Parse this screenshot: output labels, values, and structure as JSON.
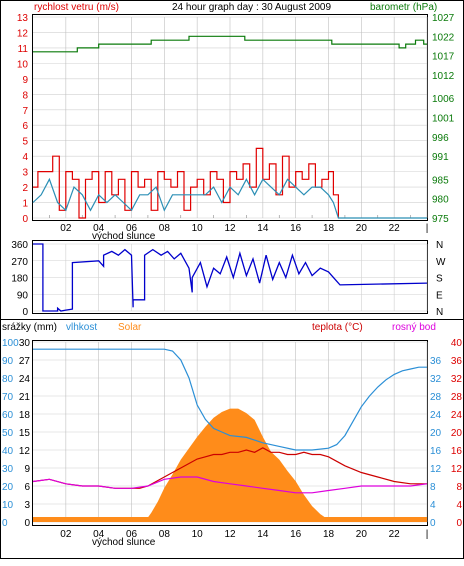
{
  "chart_data": [
    {
      "type": "line",
      "title": "24 hour graph day : 30 August 2009",
      "left_axis_label": "rychlost vetru (m/s)",
      "right_axis_label": "barometr (hPa)",
      "x_ticks": [
        "02",
        "04",
        "06",
        "08",
        "10",
        "12",
        "14",
        "16",
        "18",
        "20",
        "22",
        "|"
      ],
      "x_annotation": "východ slunce",
      "ylim_left": [
        0,
        13
      ],
      "ylim_right": [
        975,
        1027
      ],
      "y_ticks_left": [
        "0",
        "1",
        "2",
        "3",
        "4",
        "5",
        "6",
        "7",
        "8",
        "9",
        "10",
        "11",
        "12",
        "13"
      ],
      "y_ticks_right": [
        "975",
        "980",
        "985",
        "991",
        "996",
        "1001",
        "1006",
        "1012",
        "1017",
        "1022",
        "1027"
      ],
      "colors": {
        "gust": "#e00000",
        "wind": "#2b8fb5",
        "barometer": "#0a7a0a",
        "axis_left": "#dd0000",
        "axis_right": "#0a7a0a",
        "title": "#000000"
      },
      "series": [
        {
          "key": "gust",
          "hours": [
            0,
            0.3,
            0.8,
            1.2,
            1.6,
            2.0,
            2.4,
            2.8,
            3.2,
            3.6,
            4.0,
            4.4,
            4.8,
            5.2,
            5.6,
            6.0,
            6.4,
            6.8,
            7.2,
            7.6,
            8.0,
            8.4,
            8.8,
            9.2,
            9.6,
            10.0,
            10.4,
            10.8,
            11.2,
            11.6,
            12.0,
            12.4,
            12.8,
            13.2,
            13.6,
            14.0,
            14.4,
            14.8,
            15.2,
            15.6,
            16.0,
            16.4,
            16.8,
            17.2,
            17.6,
            18.0,
            18.3,
            18.6
          ],
          "values": [
            2,
            3,
            3,
            4,
            0.5,
            3,
            2.5,
            0,
            2.5,
            3,
            1,
            3,
            1.5,
            2.5,
            0.5,
            3,
            2,
            2.5,
            0.5,
            3,
            2.5,
            2,
            3,
            0.5,
            2,
            2.5,
            1.5,
            3,
            2.5,
            1,
            3,
            2.5,
            3.5,
            2,
            4.5,
            2.5,
            3.5,
            1.5,
            4,
            2,
            3,
            2.5,
            3.5,
            2,
            2.5,
            3,
            1.5,
            0
          ]
        },
        {
          "key": "wind",
          "hours": [
            0,
            0.5,
            1.0,
            1.5,
            2.0,
            2.5,
            3.0,
            3.5,
            4.0,
            4.5,
            5.0,
            5.5,
            6.0,
            6.5,
            7.0,
            7.5,
            8.0,
            8.5,
            9.0,
            9.5,
            10.0,
            10.5,
            11.0,
            11.5,
            12.0,
            12.5,
            13.0,
            13.5,
            14.0,
            14.5,
            15.0,
            15.5,
            16.0,
            16.5,
            17.0,
            17.5,
            18.0,
            18.3,
            18.6,
            19.5,
            24
          ],
          "values": [
            1,
            1.5,
            2.5,
            1,
            0.5,
            2,
            1.5,
            0.5,
            1.5,
            1,
            1.5,
            1,
            0.5,
            1.5,
            1.5,
            2,
            0.5,
            1.5,
            1.5,
            1.5,
            1.5,
            1.5,
            2,
            1,
            2,
            1.5,
            2.5,
            1.5,
            2.5,
            2,
            1.5,
            2.5,
            2,
            1.5,
            2,
            2,
            1.5,
            1,
            0,
            0,
            0
          ]
        },
        {
          "key": "barometer",
          "hours": [
            0,
            2.7,
            2.7,
            4.0,
            4.0,
            7.2,
            7.2,
            9.5,
            9.5,
            12.9,
            12.9,
            18.2,
            18.2,
            22.3,
            22.3,
            22.7,
            22.7,
            23.3,
            23.3,
            23.8,
            23.8,
            24
          ],
          "values": [
            1018,
            1018,
            1019,
            1019,
            1020,
            1020,
            1021,
            1021,
            1022,
            1022,
            1021,
            1021,
            1020,
            1020,
            1019,
            1019,
            1020,
            1020,
            1021,
            1021,
            1020,
            1020
          ]
        }
      ]
    },
    {
      "type": "line",
      "title": "",
      "y_ticks_left": [
        "0",
        "90",
        "180",
        "270",
        "360"
      ],
      "ylim": [
        0,
        360
      ],
      "compass": [
        "N",
        "W",
        "S",
        "E",
        "N"
      ],
      "colors": {
        "direction": "#0000cc"
      },
      "series": [
        {
          "key": "direction",
          "hours": [
            0,
            0.6,
            0.6,
            1.5,
            1.5,
            1.7,
            2.0,
            2.4,
            2.4,
            4.0,
            4.3,
            4.3,
            4.8,
            5.2,
            5.6,
            6.0,
            6.1,
            6.1,
            6.8,
            6.8,
            7.3,
            7.8,
            8.2,
            8.6,
            9.0,
            9.5,
            9.7,
            9.7,
            10.2,
            10.6,
            11.0,
            11.4,
            11.8,
            12.2,
            12.6,
            13.0,
            13.4,
            13.8,
            14.2,
            14.6,
            15.0,
            15.4,
            15.8,
            16.2,
            16.6,
            17.0,
            17.5,
            18.0,
            18.5,
            18.7,
            24
          ],
          "values": [
            360,
            360,
            0,
            0,
            15,
            0,
            5,
            10,
            260,
            270,
            240,
            300,
            320,
            300,
            330,
            300,
            20,
            60,
            60,
            300,
            330,
            300,
            320,
            280,
            310,
            230,
            100,
            180,
            260,
            130,
            230,
            200,
            290,
            180,
            310,
            190,
            280,
            150,
            300,
            170,
            260,
            180,
            300,
            200,
            260,
            190,
            230,
            210,
            160,
            140,
            150
          ]
        }
      ]
    },
    {
      "type": "line",
      "title": "",
      "labels": {
        "rain": "srážky (mm)",
        "humidity": "vlhkost",
        "solar": "Solar",
        "temperature": "teplota (°C)",
        "dewpoint": "rosný bod"
      },
      "x_ticks": [
        "02",
        "04",
        "06",
        "08",
        "10",
        "12",
        "14",
        "16",
        "18",
        "20",
        "22",
        "|"
      ],
      "x_annotation": "východ slunce",
      "y_ticks_humidity": [
        "0",
        "10",
        "20",
        "30",
        "40",
        "50",
        "60",
        "70",
        "80",
        "90",
        "100"
      ],
      "y_ticks_rain": [
        "0",
        "3",
        "6",
        "9",
        "12",
        "15",
        "18",
        "21",
        "24",
        "27",
        "30"
      ],
      "y_ticks_temp_blue": [
        "0",
        "4",
        "8",
        "12",
        "16",
        "20",
        "24",
        "28",
        "32",
        "36"
      ],
      "y_ticks_temp_red": [
        "0",
        "4",
        "8",
        "12",
        "16",
        "20",
        "24",
        "28",
        "32",
        "36",
        "40"
      ],
      "ylim_humidity": [
        0,
        100
      ],
      "ylim_temp": [
        0,
        40
      ],
      "colors": {
        "humidity": "#2b8fd6",
        "solar": "#ff8c1a",
        "temperature": "#cc0000",
        "dewpoint": "#dd00dd",
        "rain_axis": "#000000",
        "humidity_axis": "#2b8fd6",
        "temp_axis": "#dd0000"
      },
      "series": [
        {
          "key": "humidity",
          "hours": [
            0,
            2,
            4,
            6,
            8,
            8.5,
            9,
            9.5,
            10,
            10.5,
            11,
            11.5,
            12,
            13,
            14,
            15,
            16,
            17,
            18,
            18.5,
            19,
            19.5,
            20,
            20.5,
            21,
            21.5,
            22,
            22.5,
            23,
            23.5,
            24
          ],
          "values": [
            96,
            96,
            96,
            96,
            96,
            95,
            90,
            80,
            65,
            57,
            52,
            50,
            48,
            47,
            44,
            42,
            40,
            40,
            41,
            43,
            48,
            56,
            64,
            70,
            75,
            79,
            82,
            84,
            85,
            86,
            86
          ]
        },
        {
          "key": "temperature",
          "hours": [
            0,
            1,
            2,
            3,
            4,
            5,
            6,
            6.5,
            7,
            7.5,
            8,
            8.5,
            9,
            9.5,
            10,
            10.5,
            11,
            11.5,
            12,
            12.5,
            13,
            13.5,
            14,
            14.5,
            15,
            15.5,
            16,
            16.5,
            17,
            17.5,
            18,
            18.5,
            19,
            20,
            21,
            22,
            23,
            24
          ],
          "values": [
            9,
            9.5,
            8.5,
            8,
            8,
            7.5,
            7.5,
            7.5,
            8,
            9,
            10,
            11,
            12,
            13,
            14,
            14.5,
            15,
            15,
            15.5,
            15.5,
            16,
            15.5,
            16.5,
            15.5,
            15.5,
            15,
            15,
            15.5,
            15,
            15,
            14.5,
            13.5,
            12.5,
            11,
            10,
            9,
            8.5,
            8.5
          ]
        },
        {
          "key": "dewpoint",
          "hours": [
            0,
            1,
            2,
            3,
            4,
            5,
            6,
            7,
            8,
            9,
            10,
            11,
            12,
            13,
            14,
            15,
            16,
            17,
            18,
            19,
            20,
            21,
            22,
            23,
            24
          ],
          "values": [
            9,
            9.5,
            8.5,
            8,
            8,
            7.5,
            7.5,
            8,
            9.5,
            10,
            10,
            9,
            8.5,
            8,
            7.5,
            7,
            6.5,
            6.5,
            7,
            7.5,
            8,
            8,
            8,
            8,
            8.5
          ]
        },
        {
          "key": "solar",
          "unit": "relative (0-1)",
          "hours": [
            0,
            6.8,
            7.2,
            7.6,
            8.0,
            8.5,
            9.0,
            9.5,
            10.0,
            10.5,
            11.0,
            11.5,
            12.0,
            12.5,
            13.0,
            13.5,
            14.0,
            14.5,
            15.0,
            15.5,
            16.0,
            16.5,
            17.0,
            17.5,
            18.0,
            18.5,
            19.0,
            24
          ],
          "values": [
            0,
            0,
            0.08,
            0.18,
            0.3,
            0.42,
            0.55,
            0.65,
            0.75,
            0.84,
            0.92,
            0.97,
            1.0,
            1.0,
            0.96,
            0.9,
            0.75,
            0.62,
            0.55,
            0.45,
            0.36,
            0.24,
            0.14,
            0.07,
            0.02,
            0,
            0,
            0
          ]
        }
      ]
    }
  ]
}
